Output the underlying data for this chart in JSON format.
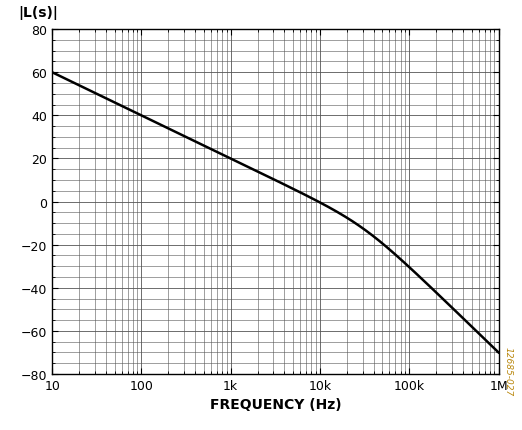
{
  "title_ylabel": "|L(s)|",
  "xlabel": "FREQUENCY (Hz)",
  "xlim": [
    10,
    1000000
  ],
  "ylim": [
    -80,
    80
  ],
  "yticks": [
    -80,
    -60,
    -40,
    -20,
    0,
    20,
    40,
    60,
    80
  ],
  "xtick_labels": [
    "10",
    "100",
    "1k",
    "10k",
    "100k",
    "1M"
  ],
  "xtick_positions": [
    10,
    100,
    1000,
    10000,
    100000,
    1000000
  ],
  "line_color": "#000000",
  "line_width": 1.8,
  "background_color": "#ffffff",
  "grid_color": "#555555",
  "watermark": "12685-027",
  "watermark_color": "#b8860b",
  "freq_start": 10,
  "freq_end": 1000000,
  "K_dB": 60.0,
  "f_integrator": 10.0,
  "f_pole": 31623.0
}
